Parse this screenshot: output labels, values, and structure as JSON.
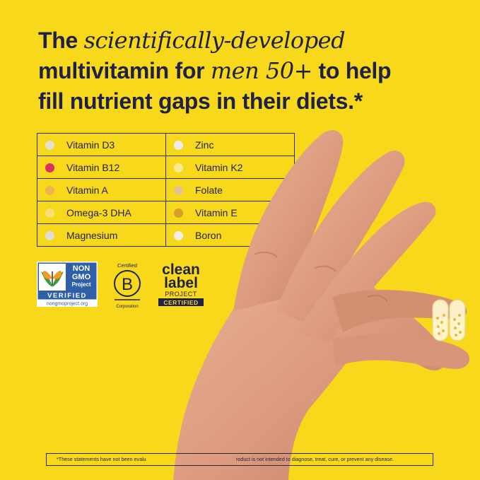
{
  "headline": {
    "line1_pre": "The ",
    "line1_italic": "scientifically-developed",
    "line2_pre": "multivitamin for ",
    "line2_italic": "men 50+",
    "line2_post": " to help",
    "line3": "fill nutrient gaps in their diets.*"
  },
  "nutrients": [
    {
      "label": "Vitamin D3",
      "color": "#e6e1cf"
    },
    {
      "label": "Zinc",
      "color": "#ececec"
    },
    {
      "label": "Vitamin B12",
      "color": "#d92f69"
    },
    {
      "label": "Vitamin K2",
      "color": "#faea98"
    },
    {
      "label": "Vitamin A",
      "color": "#f2b24d"
    },
    {
      "label": "Folate",
      "color": "#e2c294"
    },
    {
      "label": "Omega-3 DHA",
      "color": "#f9df76"
    },
    {
      "label": "Vitamin E",
      "color": "#d79d2b"
    },
    {
      "label": "Magnesium",
      "color": "#dcdcdc"
    },
    {
      "label": "Boron",
      "color": "#f3efe6"
    }
  ],
  "badges": {
    "nongmo": {
      "non": "NON",
      "gmo": "GMO",
      "project": "Project",
      "verified": "VERIFIED",
      "url": "nongmoproject.org"
    },
    "bcorp": {
      "certified": "Certified",
      "letter": "B",
      "corporation": "Corporation"
    },
    "clean_label": {
      "clean": "clean",
      "label": "label",
      "project": "PROJECT",
      "certified": "CERTIFIED"
    }
  },
  "disclaimer": {
    "left": "*These statements have not been evalu",
    "right": "roduct is not intended to diagnose, treat, cure, or prevent any disease."
  },
  "colors": {
    "background": "#f8d81a",
    "text": "#1f2147",
    "skin": "#e2a489"
  }
}
